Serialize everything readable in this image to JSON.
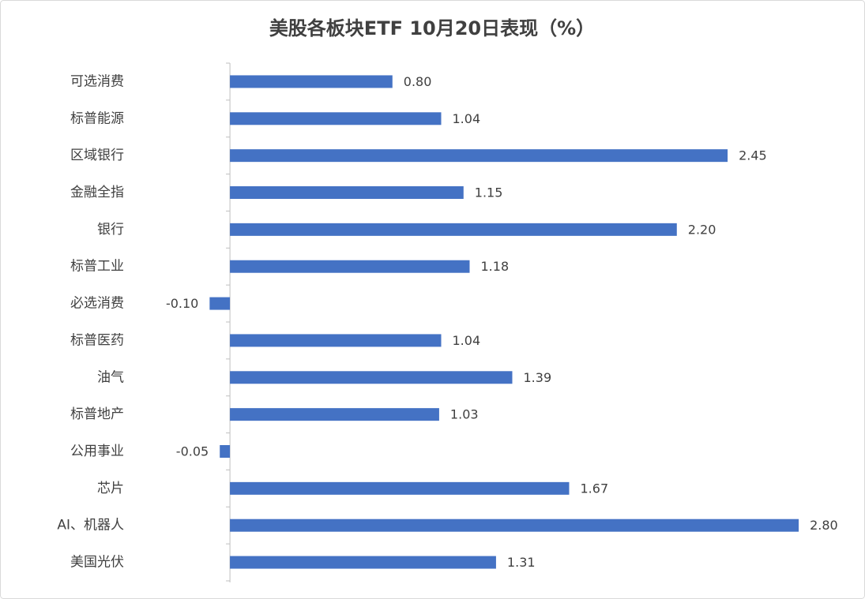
{
  "chart_data": {
    "type": "bar",
    "orientation": "horizontal",
    "title": "美股各板块ETF  10月20日表现（%）",
    "categories": [
      "可选消费",
      "标普能源",
      "区域银行",
      "金融全指",
      "银行",
      "标普工业",
      "必选消费",
      "标普医药",
      "油气",
      "标普地产",
      "公用事业",
      "芯片",
      "AI、机器人",
      "美国光伏"
    ],
    "values": [
      0.8,
      1.04,
      2.45,
      1.15,
      2.2,
      1.18,
      -0.1,
      1.04,
      1.39,
      1.03,
      -0.05,
      1.67,
      2.8,
      1.31
    ],
    "value_labels": [
      "0.80",
      "1.04",
      "2.45",
      "1.15",
      "2.20",
      "1.18",
      "-0.10",
      "1.04",
      "1.39",
      "1.03",
      "-0.05",
      "1.67",
      "2.80",
      "1.31"
    ],
    "color": "#4472c4",
    "xlim": [
      -0.5,
      3
    ]
  }
}
